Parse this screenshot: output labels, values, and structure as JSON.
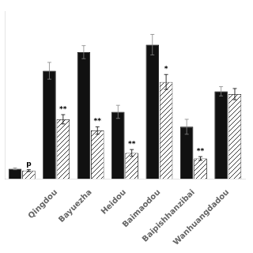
{
  "chart_data": {
    "type": "bar",
    "categories": [
      null,
      "Qingdou",
      "Bayuezha",
      "Heidou",
      "Baimaodou",
      "Baipishhanzibai",
      "Wanhuangdadou"
    ],
    "series": [
      {
        "color": "#111111",
        "values": [
          0.55,
          5.8,
          6.8,
          3.6,
          7.2,
          2.8,
          4.7
        ],
        "errors": [
          0.05,
          0.45,
          0.35,
          0.35,
          0.55,
          0.4,
          0.25
        ]
      },
      {
        "color": "#ffffff",
        "values": [
          0.45,
          3.2,
          2.6,
          1.4,
          5.2,
          1.1,
          4.55
        ],
        "errors": [
          0.05,
          0.25,
          0.2,
          0.18,
          0.4,
          0.1,
          0.3
        ],
        "annotations": [
          "p",
          "**",
          "**",
          "**",
          "*",
          "**",
          null
        ]
      }
    ],
    "ylim": [
      0,
      9.0
    ],
    "tick_labels": "x",
    "grid": false
  }
}
